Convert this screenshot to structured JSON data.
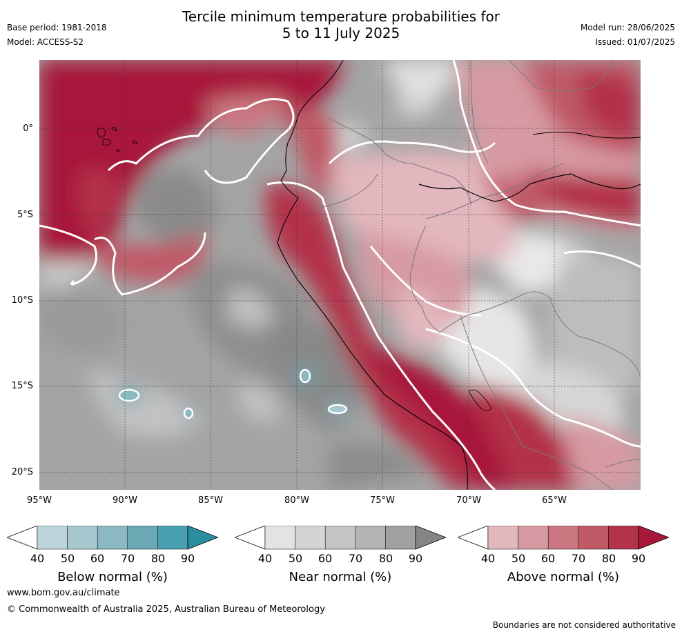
{
  "header": {
    "title_line1": "Tercile minimum temperature probabilities for",
    "title_line2": "5 to 11 July 2025",
    "base_period": "Base period: 1981-2018",
    "model": "Model: ACCESS-S2",
    "model_run": "Model run: 28/06/2025",
    "issued": "Issued: 01/07/2025"
  },
  "map": {
    "lat_labels": [
      "0°",
      "5°S",
      "10°S",
      "15°S",
      "20°S"
    ],
    "lon_labels": [
      "95°W",
      "90°W",
      "85°W",
      "80°W",
      "75°W",
      "70°W",
      "65°W"
    ],
    "lat_range": [
      -21,
      4
    ],
    "lon_range": [
      -95,
      -60
    ]
  },
  "colorbars": [
    {
      "title": "Below normal (%)",
      "ticks": [
        "40",
        "50",
        "60",
        "70",
        "80",
        "90"
      ],
      "colors": [
        "#ffffff",
        "#bcd5da",
        "#a5c7cd",
        "#8ab9c2",
        "#6aa9b4",
        "#4aa0b1",
        "#2a8ea0"
      ]
    },
    {
      "title": "Near normal (%)",
      "ticks": [
        "40",
        "50",
        "60",
        "70",
        "80",
        "90"
      ],
      "colors": [
        "#ffffff",
        "#e3e3e3",
        "#d4d4d4",
        "#c4c4c4",
        "#b3b3b3",
        "#a1a1a1",
        "#858585"
      ]
    },
    {
      "title": "Above normal (%)",
      "ticks": [
        "40",
        "50",
        "60",
        "70",
        "80",
        "90"
      ],
      "colors": [
        "#ffffff",
        "#e2b7bd",
        "#d79aa2",
        "#ca7781",
        "#c05a67",
        "#b3334a",
        "#a8183a"
      ]
    }
  ],
  "footer": {
    "url": "www.bom.gov.au/climate",
    "copyright": "© Commonwealth of Australia 2025, Australian Bureau of Meteorology",
    "note": "Boundaries are not considered authoritative"
  }
}
